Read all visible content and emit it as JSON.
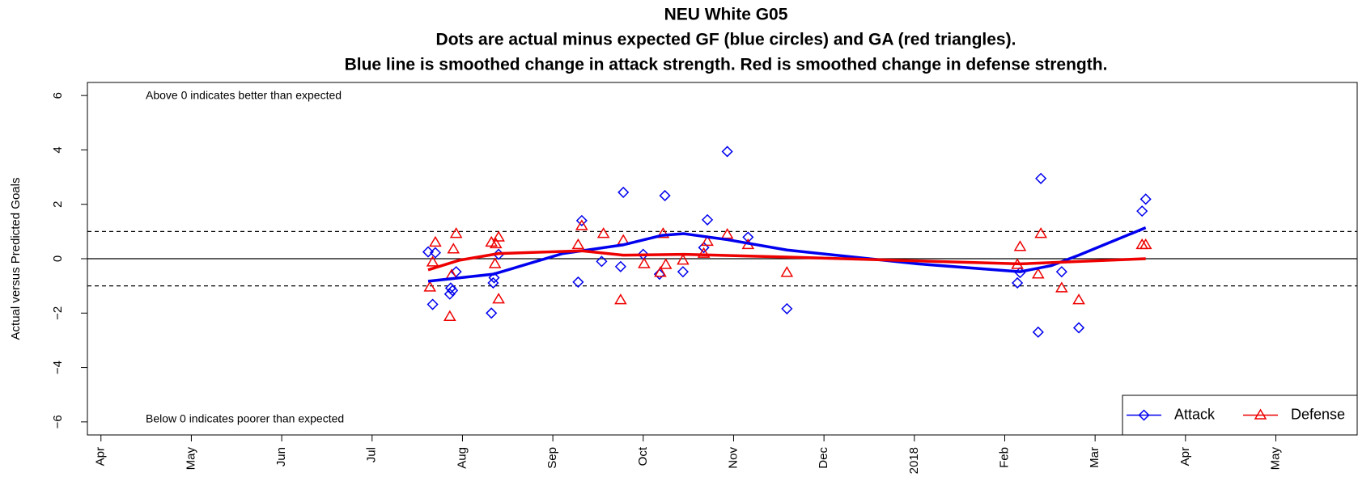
{
  "chart_data": {
    "type": "scatter",
    "title": "NEU White G05",
    "subtitle": "Dots are actual minus expected GF (blue circles) and GA (red triangles).",
    "subtitle2": "Blue line is smoothed change in attack strength. Red is smoothed change in defense strength.",
    "ylabel": "Actual versus Predicted Goals",
    "annotations": [
      "Above 0 indicates better than expected",
      "Below 0 indicates poorer than expected"
    ],
    "xlim": [
      -0.15,
      13.9
    ],
    "ylim": [
      -6.48,
      6.48
    ],
    "xticks": [
      {
        "value": 0,
        "label": "Apr"
      },
      {
        "value": 1,
        "label": "May"
      },
      {
        "value": 2,
        "label": "Jun"
      },
      {
        "value": 3,
        "label": "Jul"
      },
      {
        "value": 4,
        "label": "Aug"
      },
      {
        "value": 5,
        "label": "Sep"
      },
      {
        "value": 6,
        "label": "Oct"
      },
      {
        "value": 7,
        "label": "Nov"
      },
      {
        "value": 8,
        "label": "Dec"
      },
      {
        "value": 9,
        "label": "2018"
      },
      {
        "value": 10,
        "label": "Feb"
      },
      {
        "value": 11,
        "label": "Mar"
      },
      {
        "value": 12,
        "label": "Apr"
      },
      {
        "value": 13,
        "label": "May"
      }
    ],
    "yticks": [
      {
        "value": -6,
        "label": "−6"
      },
      {
        "value": -4,
        "label": "−4"
      },
      {
        "value": -2,
        "label": "−2"
      },
      0,
      2,
      4,
      6
    ],
    "hlines": [
      {
        "value": 0,
        "dashed": false
      },
      {
        "value": 1,
        "dashed": true
      },
      {
        "value": -1,
        "dashed": true
      }
    ],
    "legend": "bottomright",
    "series": [
      {
        "name": "Attack",
        "color": "#0000ee",
        "marker": "diamond",
        "x": [
          3.62,
          3.7,
          3.67,
          3.87,
          3.86,
          3.89,
          3.93,
          4.32,
          4.35,
          4.34,
          4.4,
          5.28,
          5.32,
          5.54,
          5.75,
          5.78,
          6.0,
          6.18,
          6.24,
          6.44,
          6.67,
          6.71,
          6.93,
          7.16,
          7.59,
          10.14,
          10.17,
          10.37,
          10.4,
          10.63,
          10.82,
          11.52,
          11.56
        ],
        "values": [
          0.25,
          0.22,
          -1.68,
          -1.08,
          -1.3,
          -1.17,
          -0.48,
          -2.0,
          -0.7,
          -0.89,
          0.16,
          -0.86,
          1.4,
          -0.1,
          -0.29,
          2.44,
          0.16,
          -0.57,
          2.32,
          -0.48,
          0.41,
          1.43,
          3.94,
          0.79,
          -1.84,
          -0.89,
          -0.51,
          -2.7,
          2.95,
          -0.48,
          -2.54,
          1.75,
          2.19
        ]
      },
      {
        "name": "Defense",
        "color": "#ee0000",
        "marker": "triangle",
        "x": [
          3.64,
          3.67,
          3.7,
          3.86,
          3.88,
          3.9,
          3.93,
          4.32,
          4.36,
          4.37,
          4.4,
          4.4,
          5.28,
          5.32,
          5.56,
          5.75,
          5.78,
          6.01,
          6.19,
          6.22,
          6.25,
          6.44,
          6.67,
          6.71,
          6.93,
          7.16,
          7.59,
          10.14,
          10.17,
          10.37,
          10.4,
          10.63,
          10.82,
          11.52,
          11.56
        ],
        "values": [
          -1.05,
          -0.13,
          0.6,
          -2.13,
          -0.6,
          0.35,
          0.92,
          0.6,
          -0.19,
          0.54,
          -1.49,
          0.79,
          0.51,
          1.21,
          0.92,
          -1.52,
          0.67,
          -0.19,
          -0.51,
          0.92,
          -0.22,
          -0.06,
          0.19,
          0.63,
          0.89,
          0.51,
          -0.51,
          -0.22,
          0.44,
          -0.57,
          0.92,
          -1.08,
          -1.52,
          0.51,
          0.51
        ]
      }
    ],
    "smooth_lines": [
      {
        "color": "#0000ee",
        "x": [
          3.62,
          4.34,
          5.11,
          5.78,
          6.21,
          6.45,
          6.93,
          7.59,
          9.04,
          10.17,
          10.52,
          10.82,
          11.56
        ],
        "values": [
          -0.83,
          -0.57,
          0.19,
          0.51,
          0.86,
          0.92,
          0.7,
          0.32,
          -0.19,
          -0.48,
          -0.25,
          0.13,
          1.14
        ]
      },
      {
        "color": "#ee0000",
        "x": [
          3.62,
          3.96,
          4.4,
          5.32,
          5.78,
          6.45,
          7.59,
          10.17,
          11.56
        ],
        "values": [
          -0.41,
          -0.06,
          0.19,
          0.29,
          0.13,
          0.16,
          0.06,
          -0.19,
          0
        ]
      }
    ]
  }
}
